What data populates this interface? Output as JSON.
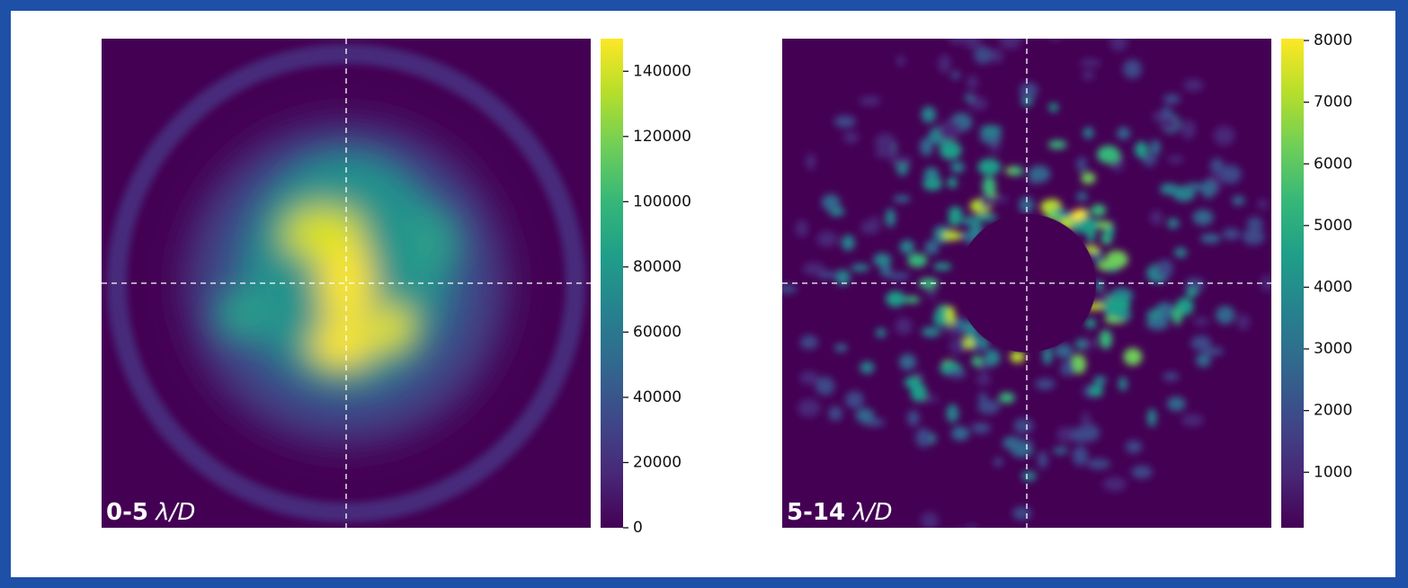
{
  "chart_data": [
    {
      "type": "image",
      "label": {
        "range": "0-5",
        "unit": "λ/D"
      },
      "colormap": "viridis",
      "clim": [
        0,
        150000
      ],
      "cticks": [
        0,
        20000,
        40000,
        60000,
        80000,
        100000,
        120000,
        140000
      ]
    },
    {
      "type": "image",
      "label": {
        "range": "5-14",
        "unit": "λ/D"
      },
      "colormap": "viridis",
      "clim": [
        100,
        8030
      ],
      "cticks": [
        1000,
        2000,
        3000,
        4000,
        5000,
        6000,
        7000,
        8000
      ]
    }
  ]
}
